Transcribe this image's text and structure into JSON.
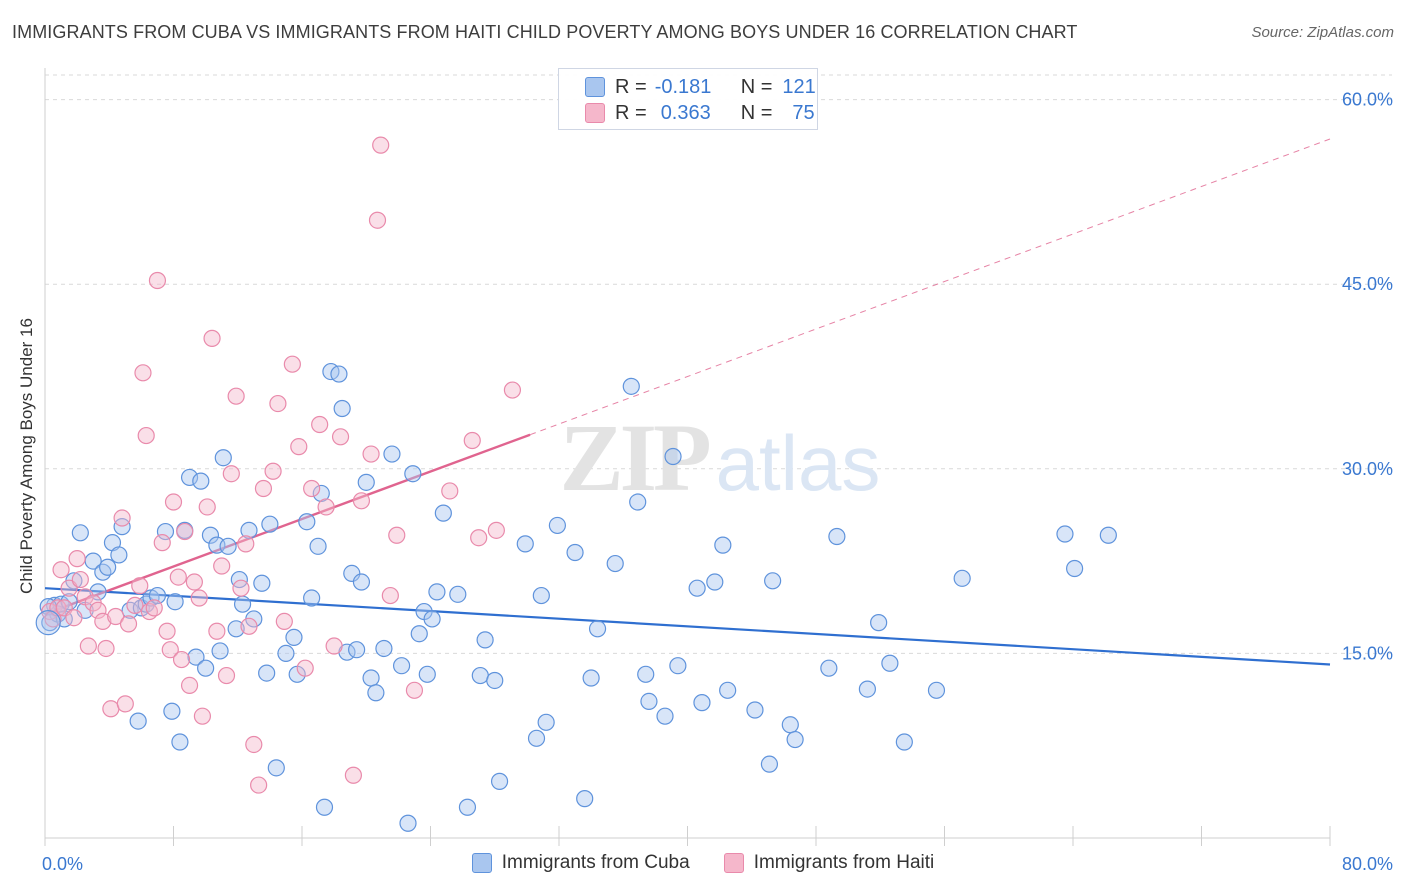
{
  "title": "IMMIGRANTS FROM CUBA VS IMMIGRANTS FROM HAITI CHILD POVERTY AMONG BOYS UNDER 16 CORRELATION CHART",
  "source": "Source: ZipAtlas.com",
  "watermark": "ZIPatlas",
  "colors": {
    "cuba_fill": "#a9c6ef",
    "cuba_stroke": "#5f93dc",
    "cuba_line": "#2f6fd0",
    "haiti_fill": "#f5b7cb",
    "haiti_stroke": "#e98aab",
    "haiti_line": "#e0648f",
    "axis_label": "#3a78d0",
    "grid": "#d9d9d9"
  },
  "stats_legend": {
    "rows": [
      {
        "r_label": "R =",
        "r_value": "-0.181",
        "n_label": "N =",
        "n_value": "121"
      },
      {
        "r_label": "R =",
        "r_value": "0.363",
        "n_label": "N =",
        "n_value": "75"
      }
    ]
  },
  "legend": {
    "items": [
      "Immigrants from Cuba",
      "Immigrants from Haiti"
    ]
  },
  "chart_data": {
    "type": "scatter",
    "title": "IMMIGRANTS FROM CUBA VS IMMIGRANTS FROM HAITI CHILD POVERTY AMONG BOYS UNDER 16 CORRELATION CHART",
    "xlabel": "",
    "ylabel": "Child Poverty Among Boys Under 16",
    "xlim": [
      0,
      80
    ],
    "ylim": [
      0,
      62
    ],
    "x_tick_labels": [
      "0.0%",
      "80.0%"
    ],
    "y_ticks": [
      15,
      30,
      45,
      60
    ],
    "y_tick_labels": [
      "15.0%",
      "30.0%",
      "45.0%",
      "60.0%"
    ],
    "grid": true,
    "legend_position": "bottom",
    "series": [
      {
        "name": "Immigrants from Cuba",
        "r": -0.181,
        "n": 121,
        "trend": {
          "x": [
            0,
            80
          ],
          "y": [
            20.3,
            14.1
          ],
          "style": "solid"
        },
        "points": [
          [
            0.3,
            17.5
          ],
          [
            0.6,
            18.9
          ],
          [
            0.8,
            18.2
          ],
          [
            1.0,
            19.0
          ],
          [
            1.2,
            17.8
          ],
          [
            1.5,
            19.2
          ],
          [
            1.8,
            20.9
          ],
          [
            2.2,
            24.8
          ],
          [
            2.5,
            18.5
          ],
          [
            3.0,
            22.5
          ],
          [
            3.3,
            20.0
          ],
          [
            3.6,
            21.6
          ],
          [
            3.9,
            22.0
          ],
          [
            4.2,
            24.0
          ],
          [
            4.6,
            23.0
          ],
          [
            4.8,
            25.3
          ],
          [
            5.3,
            18.5
          ],
          [
            5.8,
            9.5
          ],
          [
            6.0,
            18.7
          ],
          [
            6.3,
            19.0
          ],
          [
            6.6,
            19.5
          ],
          [
            7.0,
            19.7
          ],
          [
            7.5,
            24.9
          ],
          [
            7.9,
            10.3
          ],
          [
            8.1,
            19.2
          ],
          [
            8.4,
            7.8
          ],
          [
            8.7,
            25.0
          ],
          [
            9.0,
            29.3
          ],
          [
            9.4,
            14.7
          ],
          [
            9.7,
            29.0
          ],
          [
            10.0,
            13.8
          ],
          [
            10.3,
            24.6
          ],
          [
            10.7,
            23.8
          ],
          [
            10.9,
            15.2
          ],
          [
            11.1,
            30.9
          ],
          [
            11.4,
            23.7
          ],
          [
            11.9,
            17.0
          ],
          [
            12.1,
            21.0
          ],
          [
            12.3,
            19.0
          ],
          [
            12.7,
            25.0
          ],
          [
            13.0,
            17.8
          ],
          [
            13.5,
            20.7
          ],
          [
            13.8,
            13.4
          ],
          [
            14.0,
            25.5
          ],
          [
            14.4,
            5.7
          ],
          [
            15.0,
            15.0
          ],
          [
            15.5,
            16.3
          ],
          [
            15.7,
            13.3
          ],
          [
            16.3,
            25.7
          ],
          [
            16.6,
            19.5
          ],
          [
            17.0,
            23.7
          ],
          [
            17.2,
            28.0
          ],
          [
            17.4,
            2.5
          ],
          [
            17.8,
            37.9
          ],
          [
            18.3,
            37.7
          ],
          [
            18.5,
            34.9
          ],
          [
            18.8,
            15.1
          ],
          [
            19.1,
            21.5
          ],
          [
            19.4,
            15.3
          ],
          [
            19.7,
            20.8
          ],
          [
            20.0,
            28.9
          ],
          [
            20.3,
            13.0
          ],
          [
            20.6,
            11.8
          ],
          [
            21.1,
            15.4
          ],
          [
            21.6,
            31.2
          ],
          [
            22.2,
            14.0
          ],
          [
            22.6,
            1.2
          ],
          [
            22.9,
            29.6
          ],
          [
            23.3,
            16.6
          ],
          [
            23.6,
            18.4
          ],
          [
            23.8,
            13.3
          ],
          [
            24.1,
            17.8
          ],
          [
            24.4,
            20.0
          ],
          [
            24.8,
            26.4
          ],
          [
            25.7,
            19.8
          ],
          [
            26.3,
            2.5
          ],
          [
            27.1,
            13.2
          ],
          [
            27.4,
            16.1
          ],
          [
            28.0,
            12.8
          ],
          [
            28.3,
            4.6
          ],
          [
            29.9,
            23.9
          ],
          [
            30.6,
            8.1
          ],
          [
            30.9,
            19.7
          ],
          [
            31.2,
            9.4
          ],
          [
            31.9,
            25.4
          ],
          [
            33.0,
            23.2
          ],
          [
            33.6,
            3.2
          ],
          [
            34.0,
            13.0
          ],
          [
            34.4,
            17.0
          ],
          [
            35.5,
            22.3
          ],
          [
            36.5,
            36.7
          ],
          [
            36.9,
            27.3
          ],
          [
            37.4,
            13.3
          ],
          [
            37.6,
            11.1
          ],
          [
            38.6,
            9.9
          ],
          [
            39.1,
            31.0
          ],
          [
            39.4,
            14.0
          ],
          [
            40.6,
            20.3
          ],
          [
            40.9,
            11.0
          ],
          [
            41.7,
            20.8
          ],
          [
            42.2,
            23.8
          ],
          [
            42.5,
            12.0
          ],
          [
            44.2,
            10.4
          ],
          [
            45.1,
            6.0
          ],
          [
            45.3,
            20.9
          ],
          [
            46.4,
            9.2
          ],
          [
            46.7,
            8.0
          ],
          [
            48.8,
            13.8
          ],
          [
            49.3,
            24.5
          ],
          [
            51.2,
            12.1
          ],
          [
            51.9,
            17.5
          ],
          [
            52.6,
            14.2
          ],
          [
            53.5,
            7.8
          ],
          [
            55.5,
            12.0
          ],
          [
            57.1,
            21.1
          ],
          [
            63.5,
            24.7
          ],
          [
            64.1,
            21.9
          ],
          [
            66.2,
            24.6
          ],
          [
            0.2,
            18.8
          ]
        ]
      },
      {
        "name": "Immigrants from Haiti",
        "r": 0.363,
        "n": 75,
        "trend": {
          "x": [
            0,
            80
          ],
          "y": [
            18.2,
            56.8
          ],
          "solid_until": 30.2
        },
        "points": [
          [
            0.3,
            18.4
          ],
          [
            0.5,
            17.8
          ],
          [
            0.8,
            18.7
          ],
          [
            1.0,
            21.8
          ],
          [
            1.2,
            18.7
          ],
          [
            1.5,
            20.3
          ],
          [
            1.8,
            17.9
          ],
          [
            2.0,
            22.7
          ],
          [
            2.2,
            21.0
          ],
          [
            2.5,
            19.6
          ],
          [
            2.7,
            15.6
          ],
          [
            3.0,
            19.1
          ],
          [
            3.3,
            18.5
          ],
          [
            3.6,
            17.6
          ],
          [
            3.8,
            15.4
          ],
          [
            4.1,
            10.5
          ],
          [
            4.4,
            18.0
          ],
          [
            4.8,
            26.0
          ],
          [
            5.0,
            10.9
          ],
          [
            5.2,
            17.4
          ],
          [
            5.6,
            18.9
          ],
          [
            5.9,
            20.5
          ],
          [
            6.1,
            37.8
          ],
          [
            6.3,
            32.7
          ],
          [
            6.5,
            18.4
          ],
          [
            6.8,
            18.7
          ],
          [
            7.0,
            45.3
          ],
          [
            7.3,
            24.0
          ],
          [
            7.6,
            16.8
          ],
          [
            7.8,
            15.3
          ],
          [
            8.0,
            27.3
          ],
          [
            8.3,
            21.2
          ],
          [
            8.5,
            14.5
          ],
          [
            8.7,
            24.9
          ],
          [
            9.0,
            12.4
          ],
          [
            9.3,
            20.8
          ],
          [
            9.6,
            19.5
          ],
          [
            9.8,
            9.9
          ],
          [
            10.1,
            26.9
          ],
          [
            10.4,
            40.6
          ],
          [
            10.7,
            16.8
          ],
          [
            11.0,
            22.1
          ],
          [
            11.3,
            13.2
          ],
          [
            11.6,
            29.6
          ],
          [
            11.9,
            35.9
          ],
          [
            12.2,
            20.3
          ],
          [
            12.5,
            23.9
          ],
          [
            12.7,
            17.2
          ],
          [
            13.0,
            7.6
          ],
          [
            13.3,
            4.3
          ],
          [
            13.6,
            28.4
          ],
          [
            14.2,
            29.8
          ],
          [
            14.5,
            35.3
          ],
          [
            14.9,
            17.6
          ],
          [
            15.4,
            38.5
          ],
          [
            15.8,
            31.8
          ],
          [
            16.2,
            13.8
          ],
          [
            16.6,
            28.4
          ],
          [
            17.1,
            33.6
          ],
          [
            17.5,
            26.9
          ],
          [
            18.0,
            15.6
          ],
          [
            18.4,
            32.6
          ],
          [
            19.2,
            5.1
          ],
          [
            19.7,
            27.4
          ],
          [
            20.3,
            31.2
          ],
          [
            20.7,
            50.2
          ],
          [
            20.9,
            56.3
          ],
          [
            21.5,
            19.7
          ],
          [
            21.9,
            24.6
          ],
          [
            23.0,
            12.0
          ],
          [
            25.2,
            28.2
          ],
          [
            26.6,
            32.3
          ],
          [
            27.0,
            24.4
          ],
          [
            28.1,
            25.0
          ],
          [
            29.1,
            36.4
          ]
        ]
      }
    ]
  }
}
